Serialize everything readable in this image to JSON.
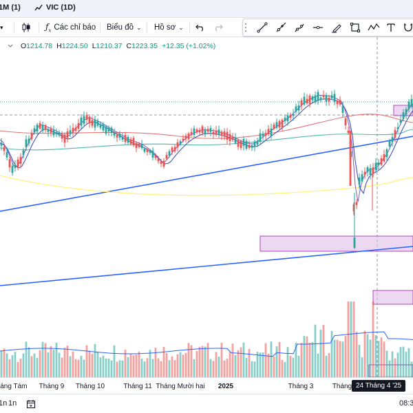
{
  "tabs": [
    {
      "label": "1M (1)"
    },
    {
      "label": "VIC (1D)"
    }
  ],
  "toolbar": {
    "indicators_label": "Các chỉ báo",
    "chart_type_label": "Biểu đồ",
    "profile_label": "Hồ sơ"
  },
  "drawing_tools": [
    "trend-line-icon",
    "ray-icon",
    "pitchfork-icon",
    "horizontal-line-icon",
    "brush-icon",
    "rectangle-icon",
    "wave-icon",
    "text-icon",
    "magnet-icon"
  ],
  "legend": {
    "open_k": "O",
    "open": "1214.78",
    "high_k": "H",
    "high": "1224.50",
    "low_k": "L",
    "low": "1210.37",
    "close_k": "C",
    "close": "1223.35",
    "change": "+12.35 (+1.02%)"
  },
  "xaxis": {
    "ticks": [
      {
        "label": "Tháng Tám",
        "bold": false
      },
      {
        "label": "Tháng 9",
        "bold": false
      },
      {
        "label": "Tháng 10",
        "bold": false
      },
      {
        "label": "Tháng 11",
        "bold": false
      },
      {
        "label": "Tháng Mười hai",
        "bold": false
      },
      {
        "label": "2025",
        "bold": true
      },
      {
        "label": "Tháng 3",
        "bold": false
      },
      {
        "label": "Tháng",
        "bold": false
      }
    ],
    "cursor_label": "24 Tháng 4 '25"
  },
  "bottombar": {
    "range_a": "1n",
    "range_b": "1n",
    "time": "08:3"
  },
  "colors": {
    "up": "#26a69a",
    "down": "#ef5350",
    "trendline": "#2962ff",
    "zone_fill": "#e1bee7",
    "zone_stroke": "#ab47bc",
    "ma_red": "#e57373",
    "ma_teal": "#4db6ac",
    "ma_yellow": "#fff176",
    "ma_blue": "#3f51b5"
  }
}
